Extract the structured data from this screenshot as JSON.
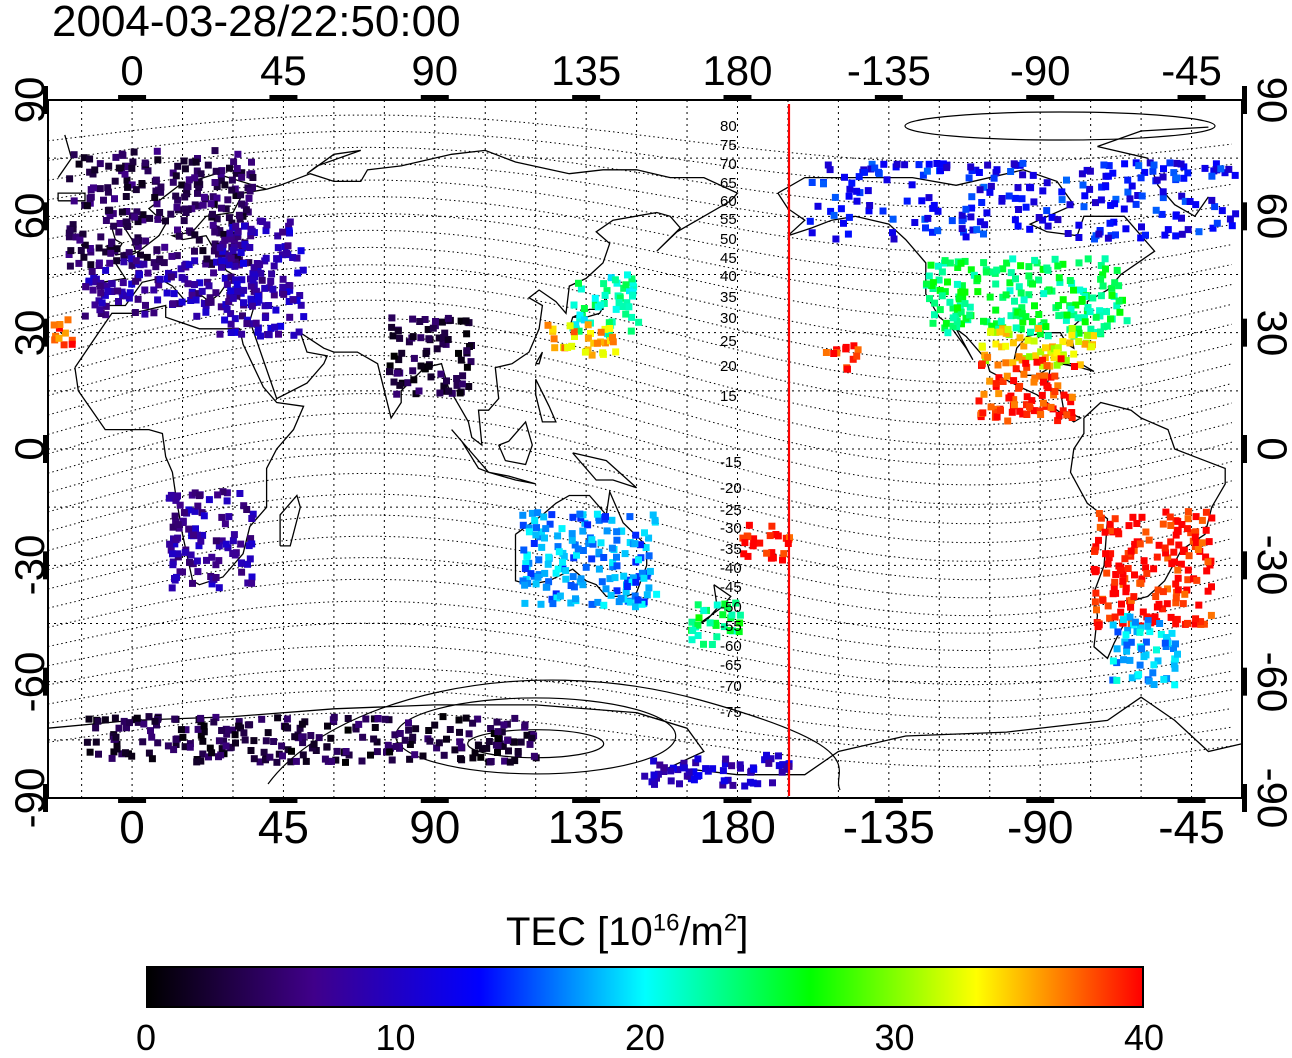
{
  "title": "2004-03-28/22:50:00",
  "axes": {
    "top_ticks": [
      "0",
      "45",
      "90",
      "135",
      "180",
      "-135",
      "-90",
      "-45"
    ],
    "bottom_ticks": [
      "0",
      "45",
      "90",
      "135",
      "180",
      "-135",
      "-90",
      "-45"
    ],
    "left_ticks": [
      "90",
      "60",
      "30",
      "0",
      "-30",
      "-60",
      "-90"
    ],
    "right_ticks": [
      "90",
      "60",
      "30",
      "0",
      "-30",
      "-60",
      "-90"
    ],
    "longitude_range": [
      -25,
      330
    ],
    "latitude_range": [
      -90,
      90
    ],
    "grid": true
  },
  "colorbar": {
    "title_prefix": "TEC  [10",
    "title_exp": "16",
    "title_mid": "/m",
    "title_exp2": "2",
    "title_suffix": "]",
    "ticks": [
      "0",
      "10",
      "20",
      "30",
      "40"
    ],
    "range": [
      0,
      40
    ],
    "colormap": [
      "#000000",
      "#40008a",
      "#0000ff",
      "#00ffff",
      "#00ff00",
      "#ffff00",
      "#ff0000"
    ]
  },
  "terminator": {
    "longitude": 200,
    "color": "#ff0000"
  },
  "contour_labels": [
    "80",
    "75",
    "70",
    "65",
    "60",
    "55",
    "50",
    "45",
    "40",
    "35",
    "30",
    "25",
    "20",
    "15",
    "-15",
    "-20",
    "-25",
    "-30",
    "-35",
    "-40",
    "-45",
    "-50",
    "-55",
    "-60",
    "-65",
    "-70",
    "-75"
  ],
  "chart_data": {
    "type": "heatmap",
    "title": "2004-03-28/22:50:00",
    "xlabel": "",
    "ylabel": "",
    "xlim": [
      -25,
      330
    ],
    "ylim": [
      -90,
      90
    ],
    "value_label": "TEC  [10^16/m^2]",
    "value_range": [
      0,
      40
    ],
    "regions": [
      {
        "lon": [
          -20,
          35
        ],
        "lat": [
          48,
          78
        ],
        "tec": 4
      },
      {
        "lon": [
          -15,
          40
        ],
        "lat": [
          35,
          50
        ],
        "tec": 8
      },
      {
        "lon": [
          25,
          50
        ],
        "lat": [
          30,
          60
        ],
        "tec": 9
      },
      {
        "lon": [
          75,
          100
        ],
        "lat": [
          15,
          35
        ],
        "tec": 3
      },
      {
        "lon": [
          130,
          150
        ],
        "lat": [
          30,
          46
        ],
        "tec": 22
      },
      {
        "lon": [
          122,
          145
        ],
        "lat": [
          25,
          33
        ],
        "tec": 35
      },
      {
        "lon": [
          200,
          340
        ],
        "lat": [
          55,
          75
        ],
        "tec": 13
      },
      {
        "lon": [
          235,
          295
        ],
        "lat": [
          30,
          50
        ],
        "tec": 24
      },
      {
        "lon": [
          250,
          285
        ],
        "lat": [
          22,
          32
        ],
        "tec": 33
      },
      {
        "lon": [
          250,
          280
        ],
        "lat": [
          8,
          25
        ],
        "tec": 39
      },
      {
        "lon": [
          285,
          320
        ],
        "lat": [
          -45,
          -15
        ],
        "tec": 40
      },
      {
        "lon": [
          290,
          310
        ],
        "lat": [
          -60,
          -42
        ],
        "tec": 18
      },
      {
        "lon": [
          115,
          155
        ],
        "lat": [
          -40,
          -15
        ],
        "tec": 17
      },
      {
        "lon": [
          165,
          180
        ],
        "lat": [
          -50,
          -38
        ],
        "tec": 24
      },
      {
        "lon": [
          180,
          195
        ],
        "lat": [
          -28,
          -18
        ],
        "tec": 40
      },
      {
        "lon": [
          205,
          215
        ],
        "lat": [
          20,
          28
        ],
        "tec": 40
      },
      {
        "lon": [
          10,
          35
        ],
        "lat": [
          -35,
          -10
        ],
        "tec": 8
      },
      {
        "lon": [
          -15,
          120
        ],
        "lat": [
          -80,
          -68
        ],
        "tec": 3
      },
      {
        "lon": [
          150,
          195
        ],
        "lat": [
          -86,
          -78
        ],
        "tec": 10
      },
      {
        "lon": [
          -25,
          -15
        ],
        "lat": [
          27,
          35
        ],
        "tec": 38
      }
    ]
  }
}
